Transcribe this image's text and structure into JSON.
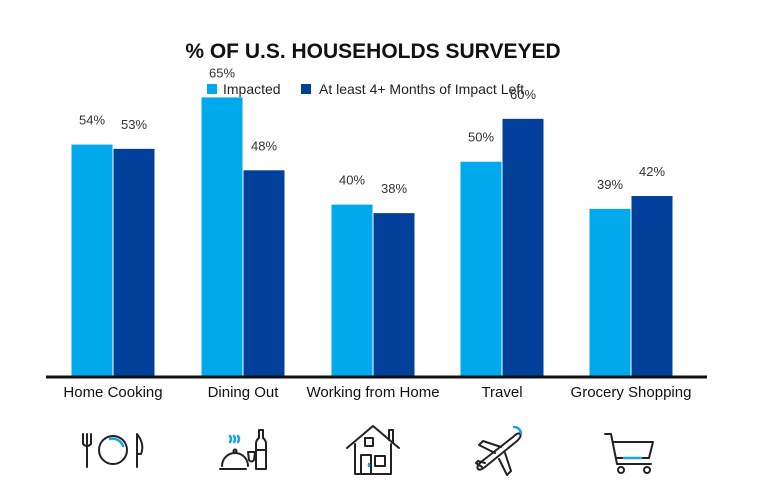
{
  "colors": {
    "impacted": "#00a9ec",
    "months_left": "#003f9a",
    "axis": "#111111",
    "icon_accent": "#1aa3e8"
  },
  "chart_data": {
    "type": "bar",
    "title": "% OF U.S. HOUSEHOLDS SURVEYED",
    "xlabel": "",
    "ylabel": "",
    "ylim": [
      0,
      70
    ],
    "grid": false,
    "legend_position": "top-center",
    "categories": [
      "Home Cooking",
      "Dining Out",
      "Working from Home",
      "Travel",
      "Grocery Shopping"
    ],
    "series": [
      {
        "name": "Impacted",
        "values": [
          54,
          65,
          40,
          50,
          39
        ],
        "labels": [
          "54%",
          "65%",
          "40%",
          "50%",
          "39%"
        ]
      },
      {
        "name": "At least 4+ Months of Impact Left",
        "values": [
          53,
          48,
          38,
          60,
          42
        ],
        "labels": [
          "53%",
          "48%",
          "38%",
          "60%",
          "42%"
        ]
      }
    ]
  },
  "category_icons": [
    "utensils-plate-icon",
    "cloche-wine-icon",
    "house-icon",
    "airplane-icon",
    "shopping-cart-icon"
  ]
}
